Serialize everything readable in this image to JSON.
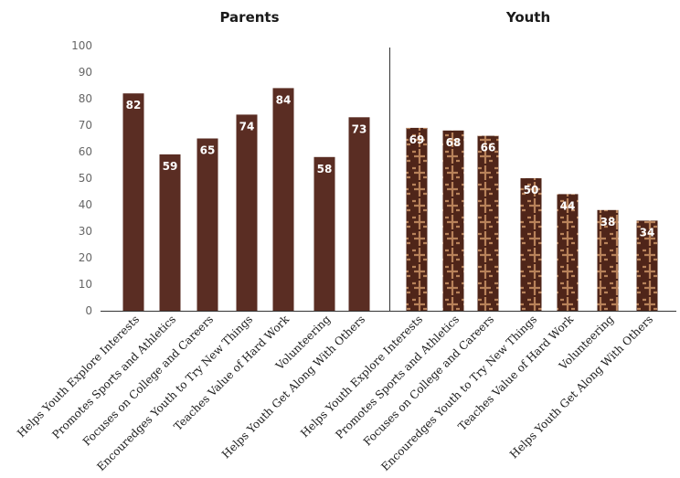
{
  "chart_data": {
    "type": "bar",
    "groups": [
      "Parents",
      "Youth"
    ],
    "categories": [
      "Helps Youth Explore Interests",
      "Promotes Sports and Athletics",
      "Focuses on College and Careers",
      "Encouredges Youth to Try New Things",
      "Teaches Value of Hard Work",
      "Volunteering",
      "Helps Youth Get Along With Others"
    ],
    "series": [
      {
        "values": [
          82,
          59,
          65,
          74,
          84,
          58,
          73
        ]
      },
      {
        "values": [
          69,
          68,
          66,
          50,
          44,
          38,
          34
        ]
      }
    ],
    "y_ticks": [
      "0",
      "10",
      "20",
      "30",
      "40",
      "50",
      "60",
      "70",
      "80",
      "90",
      "100"
    ],
    "ylim": [
      0,
      100
    ],
    "grid": false,
    "colors": {
      "parents_bar": "#5a2d23",
      "youth_bar": "#4f2519",
      "youth_pattern": "#b8825a",
      "axis": "#333333"
    }
  }
}
